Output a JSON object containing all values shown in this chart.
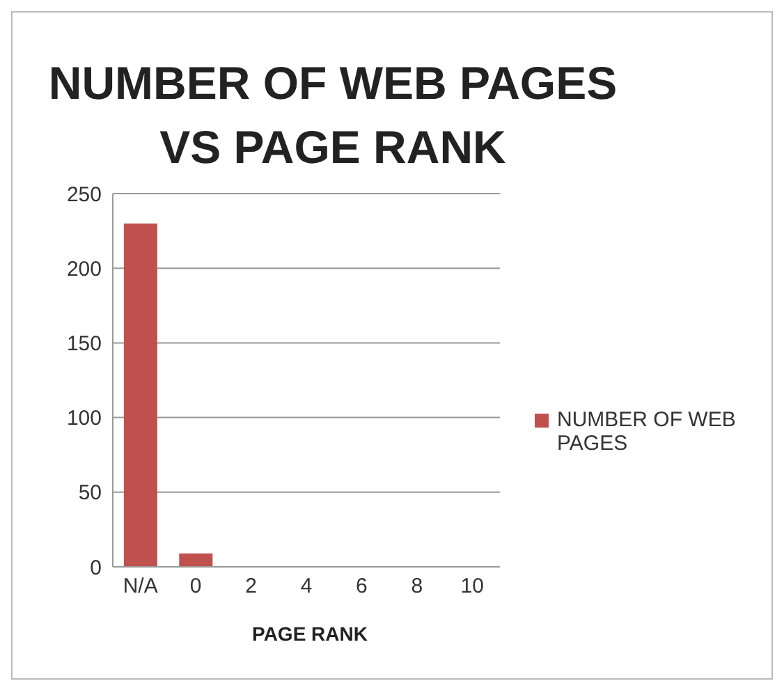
{
  "chart_data": {
    "type": "bar",
    "title": "NUMBER OF WEB PAGES VS PAGE RANK",
    "xlabel": "PAGE RANK",
    "categories": [
      "N/A",
      "0",
      "2",
      "4",
      "6",
      "8",
      "10"
    ],
    "series": [
      {
        "name": "NUMBER OF WEB PAGES",
        "color": "#c0504d",
        "values": [
          230,
          9,
          0,
          0,
          0,
          0,
          0
        ]
      }
    ],
    "ylim": [
      0,
      250
    ],
    "yticks": [
      0,
      50,
      100,
      150,
      200,
      250
    ],
    "grid": "y",
    "legend": "right"
  }
}
